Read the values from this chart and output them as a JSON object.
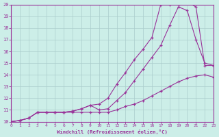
{
  "bg_color": "#cceee8",
  "grid_color": "#aacccc",
  "line_color": "#993399",
  "xlabel": "Windchill (Refroidissement éolien,°C)",
  "xlim": [
    0,
    23
  ],
  "ylim": [
    10,
    20
  ],
  "xticks": [
    0,
    1,
    2,
    3,
    4,
    5,
    6,
    7,
    8,
    9,
    10,
    11,
    12,
    13,
    14,
    15,
    16,
    17,
    18,
    19,
    20,
    21,
    22,
    23
  ],
  "yticks": [
    10,
    11,
    12,
    13,
    14,
    15,
    16,
    17,
    18,
    19,
    20
  ],
  "curve1_x": [
    0,
    1,
    2,
    3,
    4,
    5,
    6,
    7,
    8,
    9,
    10,
    11,
    12,
    13,
    14,
    15,
    16,
    17,
    18,
    19,
    20,
    21,
    22,
    23
  ],
  "curve1_y": [
    10,
    10.1,
    10.3,
    10.8,
    10.8,
    10.8,
    10.8,
    10.8,
    10.8,
    10.8,
    10.8,
    10.8,
    11.0,
    11.3,
    11.5,
    11.8,
    12.2,
    12.6,
    13.0,
    13.4,
    13.7,
    13.9,
    14.0,
    13.8
  ],
  "curve2_x": [
    0,
    1,
    2,
    3,
    4,
    5,
    6,
    7,
    8,
    9,
    10,
    11,
    12,
    13,
    14,
    15,
    16,
    17,
    18,
    19,
    20,
    21,
    22,
    23
  ],
  "curve2_y": [
    10,
    10.1,
    10.3,
    10.8,
    10.8,
    10.8,
    10.8,
    10.9,
    11.1,
    11.4,
    11.0,
    11.1,
    11.8,
    12.5,
    13.5,
    14.5,
    15.5,
    16.5,
    18.2,
    19.8,
    19.5,
    17.0,
    15.0,
    14.8
  ],
  "curve3_x": [
    0,
    1,
    2,
    3,
    4,
    5,
    6,
    7,
    8,
    9,
    10,
    11,
    12,
    13,
    14,
    15,
    16,
    17,
    18,
    19,
    20,
    21,
    22,
    23
  ],
  "curve3_y": [
    10,
    10.1,
    10.3,
    10.8,
    10.8,
    10.8,
    10.8,
    10.9,
    11.1,
    11.4,
    11.5,
    12.0,
    13.2,
    14.2,
    15.3,
    16.2,
    17.2,
    20.0,
    20.0,
    20.0,
    20.2,
    19.8,
    14.8,
    14.8
  ]
}
